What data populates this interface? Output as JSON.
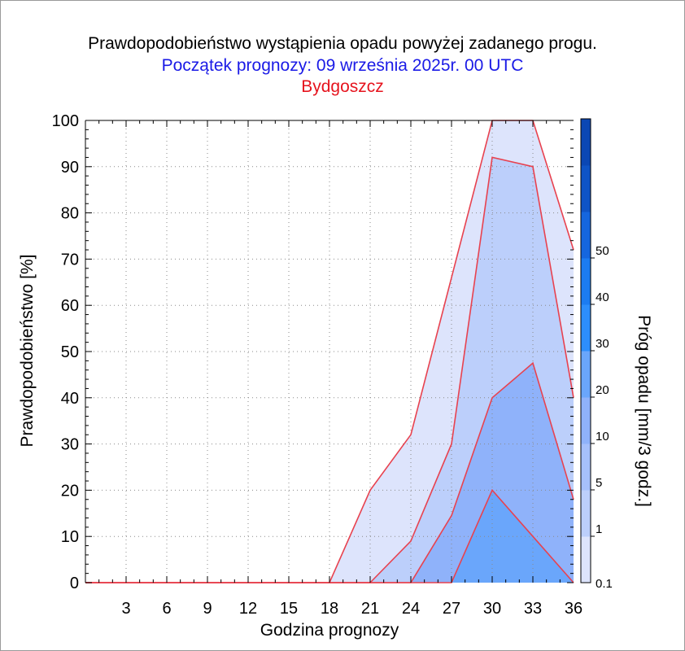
{
  "header": {
    "title": "Prawdopodobieństwo wystąpienia opadu powyżej zadanego progu.",
    "subtitle": "Początek prognozy: 09 września 2025r. 00 UTC",
    "location": "Bydgoszcz"
  },
  "colors": {
    "title": "#000000",
    "subtitle": "#1a1ae6",
    "location": "#e6141e",
    "band_outline": "#e8424f"
  },
  "chart_data": {
    "type": "area",
    "xlabel": "Godzina prognozy",
    "ylabel": "Prawdopodobieństwo [%]",
    "x": [
      0,
      3,
      6,
      9,
      12,
      15,
      18,
      21,
      24,
      27,
      30,
      33,
      36
    ],
    "xticks": [
      3,
      6,
      9,
      12,
      15,
      18,
      21,
      24,
      27,
      30,
      33,
      36
    ],
    "xlim": [
      0,
      36
    ],
    "ylim": [
      0,
      100
    ],
    "yticks": [
      0,
      10,
      20,
      30,
      40,
      50,
      60,
      70,
      80,
      90,
      100
    ],
    "grid": true,
    "series": [
      {
        "threshold": "0.1",
        "color": "#dde4fc",
        "values": [
          0,
          0,
          0,
          0,
          0,
          0,
          0,
          20,
          32,
          66,
          100,
          100,
          72
        ]
      },
      {
        "threshold": "1",
        "color": "#bccffb",
        "values": [
          0,
          0,
          0,
          0,
          0,
          0,
          0,
          0,
          9,
          30,
          92,
          90,
          40
        ]
      },
      {
        "threshold": "5",
        "color": "#8fb2fa",
        "values": [
          0,
          0,
          0,
          0,
          0,
          0,
          0,
          0,
          0,
          14.5,
          40,
          47.5,
          18
        ]
      },
      {
        "threshold": "10",
        "color": "#6aa6fb",
        "values": [
          0,
          0,
          0,
          0,
          0,
          0,
          0,
          0,
          0,
          0,
          20,
          10,
          0
        ]
      }
    ],
    "colorbar": {
      "label": "Próg opadu [mm/3 godz.]",
      "tick_labels": [
        "0.1",
        "1",
        "5",
        "10",
        "20",
        "30",
        "40",
        "50"
      ],
      "colors": [
        "#dde4fc",
        "#bccffb",
        "#a6c0fb",
        "#8fb2fa",
        "#6aa6fb",
        "#2d8efc",
        "#1c7cf1",
        "#1566de",
        "#0f54c6",
        "#0b47b4"
      ]
    }
  }
}
